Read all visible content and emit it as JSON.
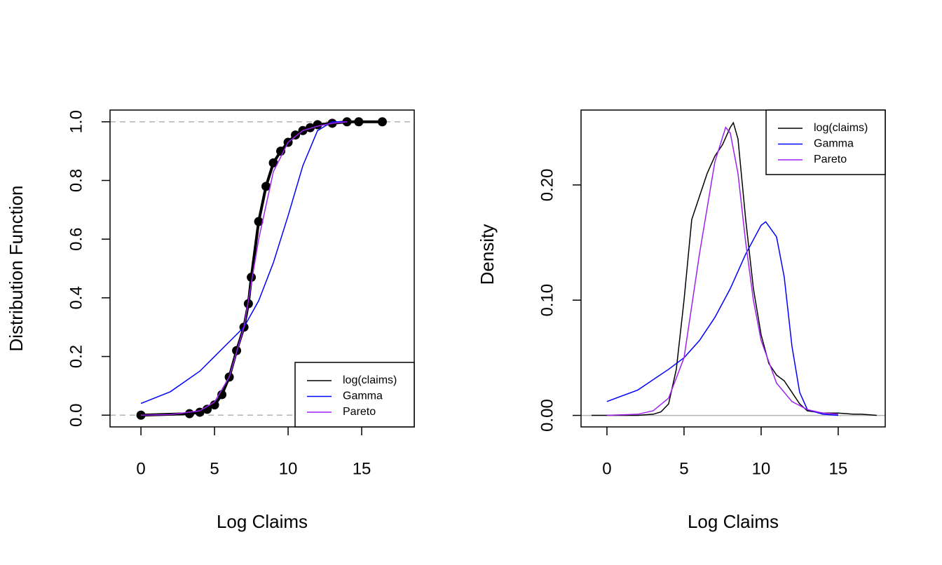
{
  "chart_data": [
    {
      "type": "line",
      "x_label": "Log Claims",
      "y_label": "Distribution Function",
      "xlim": [
        -2.1,
        18.57
      ],
      "ylim": [
        -0.04,
        1.04
      ],
      "xticks": [
        0,
        5,
        10,
        15
      ],
      "yticks": [
        {
          "value": 0,
          "label": "0.0"
        },
        0.2,
        0.4,
        0.6,
        0.8,
        {
          "value": 1,
          "label": "1.0"
        }
      ],
      "reference_lines": [
        0,
        1
      ],
      "reference_line_style": "dashed",
      "legend": "bottomright",
      "series": [
        {
          "name": "log(claims)",
          "color": "#000000",
          "marker": "circle",
          "x": [
            0,
            3.3,
            4,
            4.5,
            5,
            5.5,
            6,
            6.5,
            7,
            7.3,
            7.5,
            8,
            8.5,
            9,
            9.5,
            10,
            10.5,
            11,
            11.5,
            12,
            13,
            14,
            14.8,
            16.4
          ],
          "values": [
            0,
            0.005,
            0.01,
            0.02,
            0.035,
            0.07,
            0.13,
            0.22,
            0.3,
            0.38,
            0.47,
            0.66,
            0.78,
            0.86,
            0.9,
            0.93,
            0.955,
            0.97,
            0.98,
            0.99,
            0.995,
            1,
            1,
            1
          ]
        },
        {
          "name": "Gamma",
          "color": "#0000ff",
          "x": [
            0,
            2,
            4,
            5,
            6,
            7,
            8,
            9,
            10,
            11,
            12,
            13,
            14
          ],
          "values": [
            0.04,
            0.08,
            0.15,
            0.2,
            0.25,
            0.3,
            0.39,
            0.52,
            0.68,
            0.85,
            0.97,
            1,
            1
          ]
        },
        {
          "name": "Pareto",
          "color": "#a020f0",
          "x": [
            0,
            2,
            4,
            5,
            6,
            7,
            8,
            9,
            10,
            11,
            12,
            13,
            14
          ],
          "values": [
            0,
            0.002,
            0.015,
            0.045,
            0.13,
            0.3,
            0.6,
            0.83,
            0.93,
            0.97,
            0.985,
            0.995,
            1
          ]
        }
      ]
    },
    {
      "type": "line",
      "x_label": "Log Claims",
      "y_label": "Density",
      "xlim": [
        -1.68,
        18.05
      ],
      "ylim": [
        -0.01,
        0.265
      ],
      "xticks": [
        0,
        5,
        10,
        15
      ],
      "yticks": [
        {
          "value": 0,
          "label": "0.00"
        },
        {
          "value": 0.1,
          "label": "0.10"
        },
        {
          "value": 0.2,
          "label": "0.20"
        }
      ],
      "reference_lines": [
        0
      ],
      "reference_line_style": "solid",
      "legend": "topright",
      "series": [
        {
          "name": "log(claims)",
          "color": "#000000",
          "x": [
            -1,
            2,
            3,
            3.5,
            4,
            4.5,
            5,
            5.5,
            6,
            6.5,
            7,
            7.5,
            8,
            8.2,
            8.5,
            9,
            9.5,
            10,
            10.5,
            11,
            11.5,
            12,
            12.5,
            13,
            14,
            15,
            16,
            16.5,
            17.5
          ],
          "values": [
            0,
            0,
            0.001,
            0.003,
            0.01,
            0.04,
            0.1,
            0.17,
            0.19,
            0.21,
            0.225,
            0.235,
            0.25,
            0.254,
            0.24,
            0.17,
            0.11,
            0.07,
            0.045,
            0.035,
            0.03,
            0.02,
            0.01,
            0.004,
            0.002,
            0.002,
            0.001,
            0.001,
            0
          ]
        },
        {
          "name": "Gamma",
          "color": "#0000ff",
          "x": [
            0,
            2,
            4,
            5,
            6,
            7,
            8,
            9,
            10,
            10.3,
            11,
            11.5,
            12,
            12.5,
            13,
            14,
            15
          ],
          "values": [
            0.012,
            0.022,
            0.04,
            0.05,
            0.065,
            0.085,
            0.11,
            0.14,
            0.165,
            0.168,
            0.155,
            0.12,
            0.06,
            0.02,
            0.005,
            0.001,
            0
          ]
        },
        {
          "name": "Pareto",
          "color": "#a020f0",
          "x": [
            0,
            2,
            3,
            4,
            5,
            6,
            7,
            7.7,
            8,
            8.5,
            9,
            9.5,
            10,
            11,
            12,
            13,
            14,
            15
          ],
          "values": [
            0,
            0.001,
            0.004,
            0.015,
            0.05,
            0.14,
            0.22,
            0.25,
            0.245,
            0.21,
            0.15,
            0.1,
            0.065,
            0.028,
            0.012,
            0.005,
            0.002,
            0.001
          ]
        }
      ]
    }
  ]
}
